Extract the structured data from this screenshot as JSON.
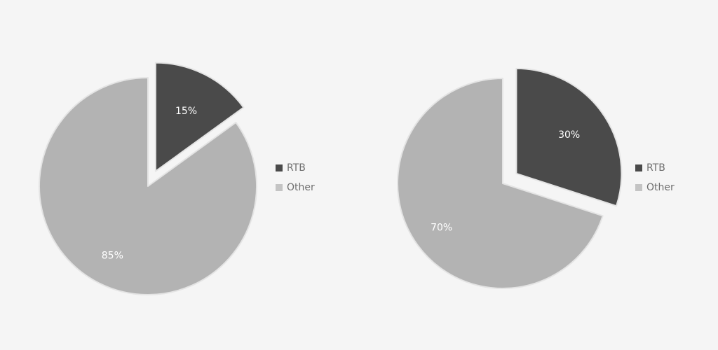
{
  "chart_data": [
    {
      "type": "pie",
      "categories": [
        "RTB",
        "Other"
      ],
      "values": [
        15,
        85
      ],
      "data_labels": [
        "15%",
        "85%"
      ],
      "exploded_slice": "RTB",
      "colors": [
        "#4a4a4a",
        "#b3b3b3"
      ],
      "legend": {
        "position": "right",
        "entries": [
          {
            "label": "RTB",
            "color": "#4a4a4a"
          },
          {
            "label": "Other",
            "color": "#c4c4c4"
          }
        ]
      }
    },
    {
      "type": "pie",
      "categories": [
        "RTB",
        "Other"
      ],
      "values": [
        30,
        70
      ],
      "data_labels": [
        "30%",
        "70%"
      ],
      "exploded_slice": "RTB",
      "colors": [
        "#4a4a4a",
        "#b3b3b3"
      ],
      "legend": {
        "position": "right",
        "entries": [
          {
            "label": "RTB",
            "color": "#4a4a4a"
          },
          {
            "label": "Other",
            "color": "#c4c4c4"
          }
        ]
      }
    }
  ],
  "background_color": "#f5f5f5"
}
